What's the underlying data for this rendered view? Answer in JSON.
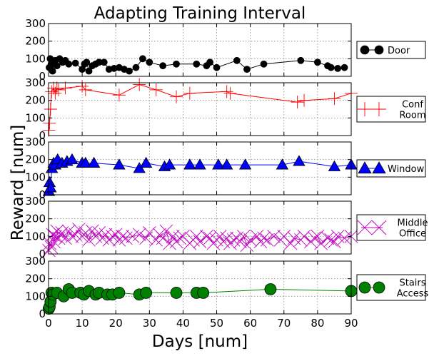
{
  "chart_data": {
    "type": "line",
    "title": "Adapting Training Interval",
    "xlabel": "Days [num]",
    "ylabel": "Reward [num]",
    "xlim": [
      0,
      90
    ],
    "ylim": [
      0,
      300
    ],
    "grid": true,
    "legend_placement": "right",
    "x_ticks": [
      "0",
      "10",
      "20",
      "30",
      "40",
      "50",
      "60",
      "70",
      "80",
      "90"
    ],
    "y_ticks": [
      "0",
      "100",
      "200",
      "300"
    ],
    "series": [
      {
        "name": "Door",
        "color": "#000000",
        "marker": "circle",
        "x": [
          0.2,
          0.5,
          0.8,
          1.2,
          1.6,
          2,
          2.5,
          3.3,
          4.2,
          5,
          6,
          8,
          10,
          10.7,
          11.3,
          12,
          13,
          14,
          15,
          16.5,
          18,
          19.5,
          21,
          22.5,
          24,
          26,
          28,
          30,
          34,
          38,
          44,
          47,
          48,
          50,
          56,
          59,
          64,
          75,
          80,
          83,
          84,
          86,
          88
        ],
        "y": [
          50,
          100,
          70,
          30,
          70,
          90,
          60,
          100,
          80,
          90,
          70,
          75,
          40,
          70,
          80,
          30,
          60,
          70,
          80,
          80,
          40,
          45,
          50,
          40,
          30,
          50,
          100,
          80,
          60,
          70,
          70,
          60,
          80,
          50,
          90,
          40,
          70,
          90,
          80,
          60,
          50,
          45,
          50
        ]
      },
      {
        "name": "Conf Room",
        "lines": [
          "Conf",
          "Room"
        ],
        "color": "#ff0000",
        "marker": "plus",
        "x": [
          0.1,
          0.3,
          0.6,
          0.9,
          1.5,
          2,
          2.5,
          3,
          5,
          10,
          11,
          21,
          27,
          32,
          38,
          42,
          53,
          54,
          74,
          76,
          85,
          90
        ],
        "y": [
          30,
          70,
          150,
          250,
          270,
          240,
          270,
          260,
          270,
          280,
          260,
          230,
          290,
          260,
          220,
          240,
          250,
          240,
          190,
          200,
          210,
          240
        ]
      },
      {
        "name": "Window",
        "color": "#0000ff",
        "marker": "triangle",
        "x": [
          0.1,
          0.3,
          0.6,
          1,
          1.5,
          2,
          2.7,
          4,
          5.5,
          7,
          10,
          11,
          13.5,
          21,
          27,
          29,
          34.5,
          36,
          42,
          45,
          50.5,
          53,
          58.5,
          69.5,
          74.5,
          85,
          90
        ],
        "y": [
          20,
          70,
          40,
          150,
          180,
          170,
          200,
          180,
          190,
          200,
          180,
          180,
          180,
          170,
          150,
          180,
          160,
          170,
          170,
          170,
          170,
          170,
          170,
          170,
          190,
          160,
          170
        ]
      },
      {
        "name": "Middle Office",
        "lines": [
          "Middle",
          "Office"
        ],
        "color": "#bf00bf",
        "marker": "x",
        "x": [
          0.1,
          0.4,
          0.8,
          1.2,
          1.6,
          2,
          2.5,
          3,
          3.5,
          4,
          5,
          6,
          7,
          8,
          9,
          10,
          11,
          12,
          13,
          14,
          15,
          16,
          17,
          18,
          19,
          20,
          21,
          22,
          23,
          25,
          27,
          29,
          30,
          32,
          33,
          34,
          35,
          36,
          37,
          38,
          39,
          40,
          42,
          43,
          44,
          45,
          47,
          48,
          49,
          50,
          51,
          52,
          53,
          54,
          55,
          56,
          57,
          58,
          59,
          60,
          62,
          63,
          64,
          65,
          67,
          69,
          70,
          72,
          73,
          75,
          76,
          78,
          79,
          80,
          81,
          83,
          84,
          85,
          86,
          88,
          90
        ],
        "y": [
          20,
          60,
          40,
          110,
          70,
          100,
          130,
          90,
          110,
          120,
          90,
          130,
          100,
          110,
          140,
          100,
          120,
          80,
          130,
          100,
          120,
          90,
          110,
          80,
          100,
          110,
          80,
          100,
          90,
          100,
          110,
          90,
          120,
          80,
          110,
          90,
          130,
          60,
          100,
          70,
          90,
          100,
          60,
          80,
          100,
          70,
          100,
          90,
          60,
          80,
          100,
          70,
          90,
          60,
          80,
          90,
          70,
          100,
          50,
          80,
          100,
          70,
          90,
          80,
          100,
          80,
          100,
          60,
          90,
          80,
          100,
          70,
          90,
          100,
          60,
          90,
          80,
          70,
          100,
          90,
          100
        ]
      },
      {
        "name": "Stairs Access",
        "lines": [
          "Stairs",
          "Access"
        ],
        "color": "#008000",
        "marker": "circle",
        "x": [
          0.1,
          0.3,
          0.6,
          0.9,
          1.3,
          2.5,
          4.5,
          6,
          7,
          9.5,
          10.5,
          12,
          14,
          15,
          17.5,
          19,
          21,
          27,
          29,
          38,
          44,
          46,
          66,
          90
        ],
        "y": [
          30,
          40,
          70,
          120,
          110,
          120,
          100,
          140,
          120,
          120,
          110,
          130,
          110,
          120,
          110,
          110,
          120,
          110,
          120,
          120,
          120,
          120,
          140,
          130
        ]
      }
    ]
  }
}
